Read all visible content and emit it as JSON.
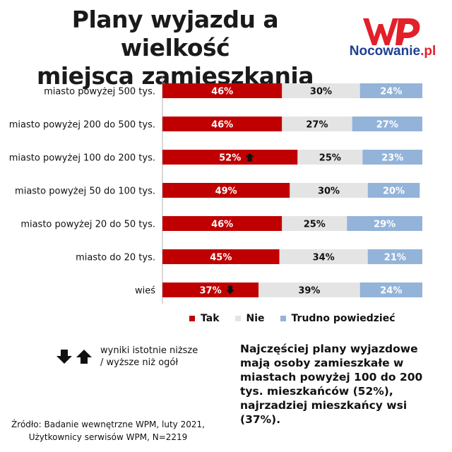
{
  "title": {
    "line1": "Plany wyjazdu a wielkość",
    "line2": "miejsca zamieszkania"
  },
  "logo": {
    "brand_part1": "Nocowanie",
    "brand_part2": ".pl",
    "mark_icon": "wp-logo-icon"
  },
  "colors": {
    "tak": "#c00000",
    "nie": "#e4e4e4",
    "trudno": "#93b3d9",
    "logo_red": "#e2202b",
    "logo_blue": "#1f3f95"
  },
  "chart_data": {
    "type": "bar",
    "orientation": "horizontal",
    "stacked": true,
    "xlim": [
      0,
      100
    ],
    "unit": "%",
    "grid": false,
    "legend_position": "bottom",
    "categories": [
      "miasto powyżej 500 tys.",
      "miasto powyżej 200 do 500 tys.",
      "miasto powyżej 100 do 200 tys.",
      "miasto powyżej 50 do 100 tys.",
      "miasto powyżej 20 do 50 tys.",
      "miasto do 20 tys.",
      "wieś"
    ],
    "series": [
      {
        "name": "Tak",
        "values": [
          46,
          46,
          52,
          49,
          46,
          45,
          37
        ]
      },
      {
        "name": "Nie",
        "values": [
          30,
          27,
          25,
          30,
          25,
          34,
          39
        ]
      },
      {
        "name": "Trudno powiedzieć",
        "values": [
          24,
          27,
          23,
          20,
          29,
          21,
          24
        ]
      }
    ],
    "markers": [
      null,
      null,
      "up",
      null,
      null,
      null,
      "down"
    ]
  },
  "legend": {
    "items": [
      {
        "label": "Tak",
        "color": "#c00000"
      },
      {
        "label": "Nie",
        "color": "#e4e4e4"
      },
      {
        "label": "Trudno powiedzieć",
        "color": "#93b3d9"
      }
    ]
  },
  "arrows_note": {
    "line1": "wyniki istotnie niższe",
    "line2": "/ wyższe niż ogół"
  },
  "note": "Najczęściej plany wyjazdowe mają osoby zamieszkałe w miastach powyżej 100 do 200 tys. mieszkańców (52%), najrzadziej mieszkańcy wsi (37%).",
  "source": {
    "line1": "Źródło: Badanie wewnętrzne WPM, luty 2021,",
    "line2": "Użytkownicy serwisów WPM, N=2219"
  }
}
